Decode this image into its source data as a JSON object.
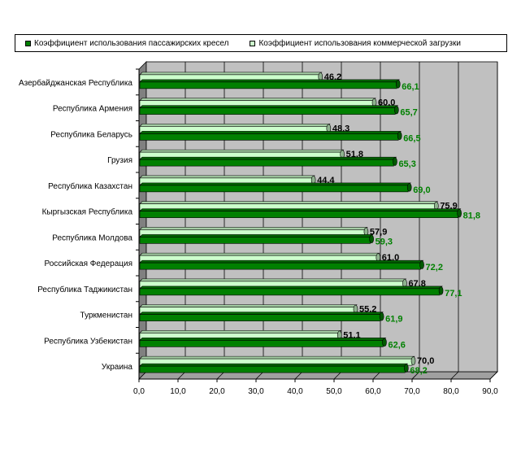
{
  "chart_data": {
    "type": "bar",
    "orientation": "horizontal",
    "categories": [
      "Азербайджанская Республика",
      "Республика Армения",
      "Республика Беларусь",
      "Грузия",
      "Республика Казахстан",
      "Кыргызская Республика",
      "Республика Молдова",
      "Российская Федерация",
      "Республика Таджикистан",
      "Туркменистан",
      "Республика Узбекистан",
      "Украина"
    ],
    "series": [
      {
        "name": "Коэффициент использования коммерческой загрузки",
        "values": [
          46.2,
          60.0,
          48.3,
          51.8,
          44.4,
          75.9,
          57.9,
          61.0,
          67.8,
          55.2,
          51.1,
          70.0
        ],
        "labels": [
          "46,2",
          "60,0",
          "48,3",
          "51,8",
          "44,4",
          "75,9",
          "57,9",
          "61,0",
          "67,8",
          "55,2",
          "51,1",
          "70,0"
        ],
        "color": "#ccffcc",
        "label_color": "#000000"
      },
      {
        "name": "Коэффициент использования пассажирских кресел",
        "values": [
          66.1,
          65.7,
          66.5,
          65.3,
          69.0,
          81.8,
          59.3,
          72.2,
          77.1,
          61.9,
          62.6,
          68.2
        ],
        "labels": [
          "66,1",
          "65,7",
          "66,5",
          "65,3",
          "69,0",
          "81,8",
          "59,3",
          "72,2",
          "77,1",
          "61,9",
          "62,6",
          "68,2"
        ],
        "color": "#008000",
        "label_color": "#008000"
      }
    ],
    "legend": {
      "placement": "top",
      "order": [
        1,
        0
      ]
    },
    "xlim": [
      0,
      90
    ],
    "xticks": [
      0,
      10,
      20,
      30,
      40,
      50,
      60,
      70,
      80,
      90
    ],
    "xtick_labels": [
      "0,0",
      "10,0",
      "20,0",
      "30,0",
      "40,0",
      "50,0",
      "60,0",
      "70,0",
      "80,0",
      "90,0"
    ],
    "grid": true,
    "plot_background": "#c0c0c0",
    "title": "",
    "xlabel": "",
    "ylabel": ""
  }
}
